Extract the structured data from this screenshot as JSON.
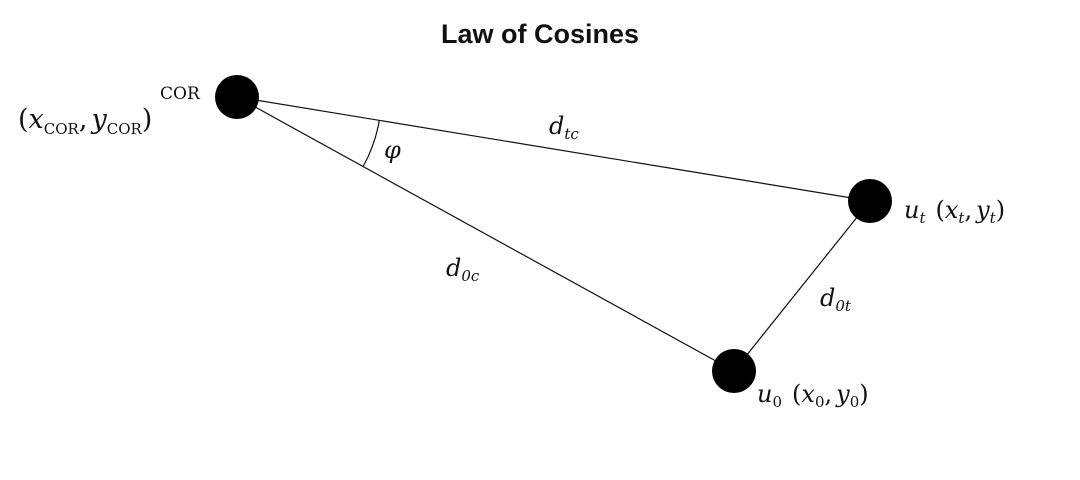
{
  "title": "Law of Cosines",
  "colors": {
    "node": "#000000",
    "edge": "#111111",
    "background": "#ffffff"
  },
  "nodes": {
    "cor": {
      "name_label": "COR",
      "coord_open": "(",
      "x_var": "x",
      "x_sub": "COR",
      "comma": ",",
      "y_var": "y",
      "y_sub": "COR",
      "coord_close": ")"
    },
    "ut": {
      "var": "u",
      "sub": "t",
      "coord_open": "(",
      "x_var": "x",
      "x_sub": "t",
      "comma": ",",
      "y_var": "y",
      "y_sub": "t",
      "coord_close": ")"
    },
    "u0": {
      "var": "u",
      "sub": "0",
      "coord_open": "(",
      "x_var": "x",
      "x_sub": "0",
      "comma": ",",
      "y_var": "y",
      "y_sub": "0",
      "coord_close": ")"
    }
  },
  "edges": {
    "dtc": {
      "var": "d",
      "sub": "tc"
    },
    "d0c": {
      "var": "d",
      "sub": "0c"
    },
    "d0t": {
      "var": "d",
      "sub": "0t"
    }
  },
  "angle": {
    "symbol": "φ"
  }
}
